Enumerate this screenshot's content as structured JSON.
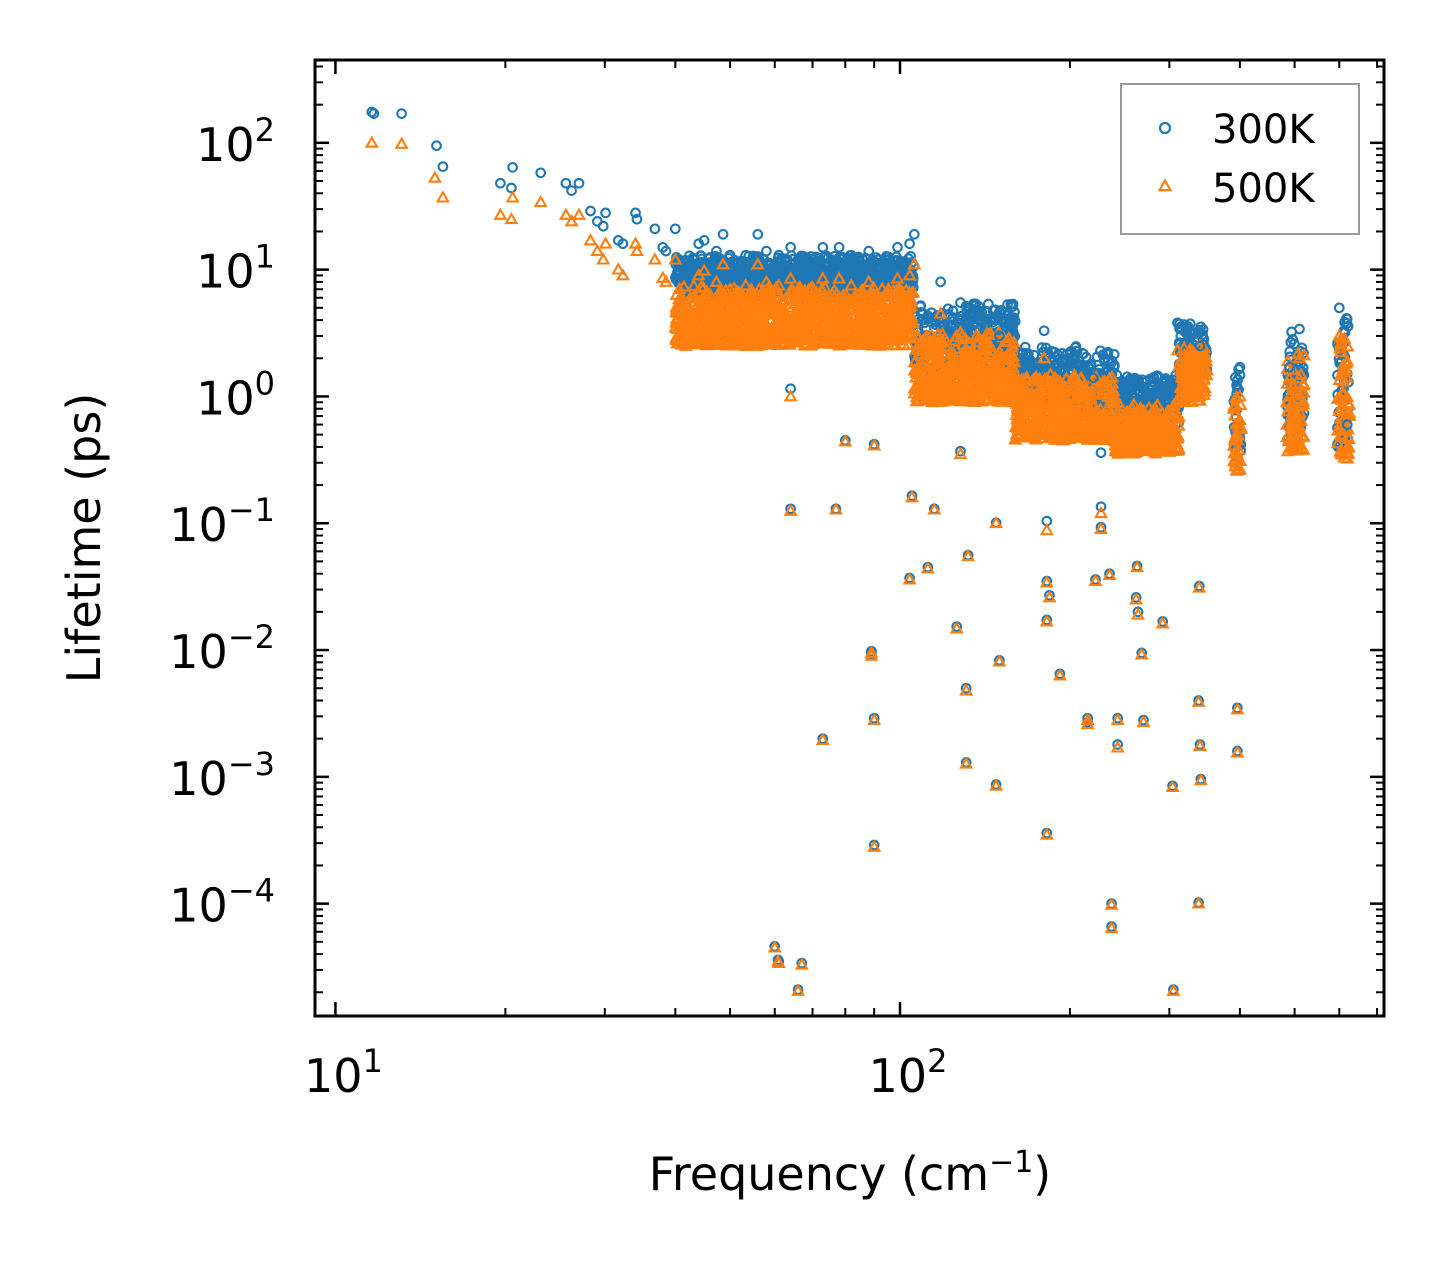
{
  "chart_data": {
    "type": "scatter",
    "xscale": "log",
    "yscale": "log",
    "xlabel": "Frequency (cm",
    "xlabel_sup": "−1",
    "xlabel_end": ")",
    "ylabel": "Lifetime (ps)",
    "xlim": [
      9.2,
      720
    ],
    "ylim": [
      1.3e-05,
      450
    ],
    "x_ticks": [
      {
        "value": 10,
        "base": "10",
        "exp": "1"
      },
      {
        "value": 100,
        "base": "10",
        "exp": "2"
      }
    ],
    "y_ticks": [
      {
        "value": 100,
        "base": "10",
        "exp": "2"
      },
      {
        "value": 10,
        "base": "10",
        "exp": "1"
      },
      {
        "value": 1,
        "base": "10",
        "exp": "0"
      },
      {
        "value": 0.1,
        "base": "10",
        "exp": "−1"
      },
      {
        "value": 0.01,
        "base": "10",
        "exp": "−2"
      },
      {
        "value": 0.001,
        "base": "10",
        "exp": "−3"
      },
      {
        "value": 0.0001,
        "base": "10",
        "exp": "−4"
      }
    ],
    "legend_position": "top-right",
    "series": [
      {
        "name": "300K",
        "marker": "circle",
        "color": "#1f77b4",
        "points": [
          [
            11.6,
            175
          ],
          [
            11.7,
            170
          ],
          [
            13.1,
            170
          ],
          [
            15.1,
            95
          ],
          [
            15.5,
            65
          ],
          [
            19.6,
            48
          ],
          [
            20.5,
            44
          ],
          [
            20.6,
            64
          ],
          [
            23.1,
            58
          ],
          [
            25.6,
            48
          ],
          [
            26.2,
            42
          ],
          [
            27.0,
            48
          ],
          [
            28.3,
            29
          ],
          [
            29.1,
            24
          ],
          [
            29.8,
            22
          ],
          [
            30.1,
            28
          ],
          [
            31.7,
            17
          ],
          [
            32.3,
            16
          ],
          [
            34.0,
            28
          ],
          [
            34.2,
            25
          ],
          [
            36.8,
            21
          ],
          [
            38.0,
            15
          ],
          [
            38.5,
            14
          ],
          [
            40.0,
            21
          ],
          [
            41.1,
            11
          ],
          [
            44.0,
            16
          ],
          [
            45.0,
            17
          ],
          [
            47.3,
            14
          ],
          [
            48.6,
            19
          ],
          [
            50.0,
            13
          ],
          [
            53.3,
            13
          ],
          [
            56.0,
            19
          ],
          [
            58.0,
            14
          ],
          [
            61.0,
            13
          ],
          [
            64.0,
            15
          ],
          [
            66.0,
            12
          ],
          [
            70.0,
            11
          ],
          [
            73.0,
            15
          ],
          [
            78.0,
            15
          ],
          [
            82.0,
            13
          ],
          [
            88.0,
            14
          ],
          [
            94.0,
            11
          ],
          [
            99.0,
            15
          ],
          [
            104.0,
            16
          ],
          [
            106.0,
            19
          ],
          [
            118.0,
            8
          ],
          [
            128.0,
            5.5
          ],
          [
            140.0,
            4
          ],
          [
            150.0,
            3
          ],
          [
            165.0,
            2.2
          ],
          [
            180.0,
            3.3
          ],
          [
            200.0,
            1.8
          ],
          [
            220.0,
            1.4
          ],
          [
            250.0,
            1.1
          ],
          [
            280.0,
            1.2
          ],
          [
            310.0,
            3.8
          ],
          [
            340.0,
            2.5
          ],
          [
            400.0,
            1.7
          ],
          [
            490.0,
            1.7
          ],
          [
            510.0,
            3.4
          ],
          [
            600.0,
            5.0
          ],
          [
            620.0,
            0.6
          ],
          [
            64,
            1.15
          ],
          [
            80,
            0.45
          ],
          [
            90,
            0.42
          ],
          [
            128,
            0.37
          ],
          [
            227,
            0.36
          ],
          [
            105,
            0.165
          ],
          [
            64,
            0.13
          ],
          [
            77,
            0.13
          ],
          [
            115,
            0.13
          ],
          [
            148,
            0.101
          ],
          [
            182,
            0.104
          ],
          [
            227,
            0.135
          ],
          [
            227,
            0.093
          ],
          [
            132,
            0.056
          ],
          [
            235,
            0.04
          ],
          [
            222,
            0.036
          ],
          [
            104,
            0.037
          ],
          [
            112,
            0.045
          ],
          [
            182,
            0.035
          ],
          [
            184,
            0.027
          ],
          [
            263,
            0.046
          ],
          [
            262,
            0.026
          ],
          [
            264,
            0.02
          ],
          [
            292,
            0.0168
          ],
          [
            339,
            0.032
          ],
          [
            126,
            0.0153
          ],
          [
            182,
            0.0173
          ],
          [
            89,
            0.0098
          ],
          [
            89,
            0.0093
          ],
          [
            150,
            0.0083
          ],
          [
            268,
            0.0095
          ],
          [
            192,
            0.0065
          ],
          [
            131,
            0.005
          ],
          [
            338,
            0.004
          ],
          [
            396,
            0.0035
          ],
          [
            90,
            0.0029
          ],
          [
            215,
            0.0029
          ],
          [
            215,
            0.0027
          ],
          [
            243,
            0.0029
          ],
          [
            243,
            0.0018
          ],
          [
            270,
            0.0028
          ],
          [
            73,
            0.002
          ],
          [
            340,
            0.0018
          ],
          [
            396,
            0.0016
          ],
          [
            131,
            0.0013
          ],
          [
            148,
            0.00087
          ],
          [
            304,
            0.00085
          ],
          [
            341,
            0.00096
          ],
          [
            182,
            0.00036
          ],
          [
            90,
            0.00029
          ],
          [
            237,
            0.0001
          ],
          [
            338,
            0.000102
          ],
          [
            237,
            6.6e-05
          ],
          [
            60,
            4.6e-05
          ],
          [
            60.8,
            3.6e-05
          ],
          [
            61,
            3.5e-05
          ],
          [
            67,
            3.4e-05
          ],
          [
            66,
            2.1e-05
          ],
          [
            305,
            2.1e-05
          ]
        ]
      },
      {
        "name": "500K",
        "marker": "triangle",
        "color": "#ff7f0e",
        "points": [
          [
            11.6,
            100
          ],
          [
            13.1,
            98
          ],
          [
            15.0,
            53
          ],
          [
            15.5,
            37
          ],
          [
            19.6,
            27
          ],
          [
            20.5,
            25
          ],
          [
            20.6,
            37
          ],
          [
            23.1,
            34
          ],
          [
            25.6,
            27
          ],
          [
            26.2,
            24
          ],
          [
            27.0,
            27
          ],
          [
            28.3,
            17
          ],
          [
            29.1,
            14
          ],
          [
            29.8,
            12
          ],
          [
            30.1,
            16
          ],
          [
            31.7,
            10
          ],
          [
            32.3,
            9
          ],
          [
            34.0,
            16
          ],
          [
            34.2,
            14
          ],
          [
            36.8,
            12
          ],
          [
            38.0,
            8.6
          ],
          [
            38.5,
            8
          ],
          [
            40.0,
            12
          ],
          [
            41.1,
            6
          ],
          [
            44.0,
            9
          ],
          [
            45.0,
            9.8
          ],
          [
            47.3,
            8
          ],
          [
            48.6,
            11
          ],
          [
            50.0,
            7
          ],
          [
            53.3,
            7.5
          ],
          [
            56.0,
            11
          ],
          [
            58.0,
            8
          ],
          [
            61.0,
            7.5
          ],
          [
            64.0,
            8.5
          ],
          [
            66.0,
            7
          ],
          [
            70.0,
            6.2
          ],
          [
            73.0,
            8.5
          ],
          [
            78.0,
            8.5
          ],
          [
            82.0,
            7.5
          ],
          [
            88.0,
            8
          ],
          [
            94.0,
            6.3
          ],
          [
            99.0,
            8.5
          ],
          [
            104.0,
            9
          ],
          [
            106.0,
            11
          ],
          [
            118.0,
            4.5
          ],
          [
            128.0,
            3.2
          ],
          [
            140.0,
            2.4
          ],
          [
            150.0,
            1.8
          ],
          [
            165.0,
            1.3
          ],
          [
            180.0,
            2.0
          ],
          [
            200.0,
            1.1
          ],
          [
            220.0,
            0.85
          ],
          [
            250.0,
            0.7
          ],
          [
            280.0,
            0.75
          ],
          [
            310.0,
            2.3
          ],
          [
            340.0,
            1.5
          ],
          [
            400.0,
            1.0
          ],
          [
            490.0,
            1.0
          ],
          [
            510.0,
            2.0
          ],
          [
            600.0,
            3.0
          ],
          [
            620.0,
            0.35
          ],
          [
            64,
            1.0
          ],
          [
            80,
            0.44
          ],
          [
            90,
            0.41
          ],
          [
            128,
            0.35
          ],
          [
            105,
            0.16
          ],
          [
            64,
            0.125
          ],
          [
            77,
            0.128
          ],
          [
            115,
            0.128
          ],
          [
            148,
            0.1
          ],
          [
            182,
            0.088
          ],
          [
            227,
            0.12
          ],
          [
            227,
            0.09
          ],
          [
            132,
            0.055
          ],
          [
            235,
            0.039
          ],
          [
            222,
            0.035
          ],
          [
            104,
            0.036
          ],
          [
            112,
            0.044
          ],
          [
            182,
            0.034
          ],
          [
            184,
            0.026
          ],
          [
            263,
            0.045
          ],
          [
            262,
            0.025
          ],
          [
            264,
            0.019
          ],
          [
            292,
            0.0162
          ],
          [
            339,
            0.031
          ],
          [
            126,
            0.0148
          ],
          [
            182,
            0.0168
          ],
          [
            89,
            0.0095
          ],
          [
            89,
            0.009
          ],
          [
            150,
            0.0081
          ],
          [
            268,
            0.0092
          ],
          [
            192,
            0.0063
          ],
          [
            131,
            0.0048
          ],
          [
            338,
            0.0039
          ],
          [
            396,
            0.0034
          ],
          [
            90,
            0.0028
          ],
          [
            215,
            0.0028
          ],
          [
            215,
            0.0026
          ],
          [
            243,
            0.0028
          ],
          [
            243,
            0.0017
          ],
          [
            270,
            0.0027
          ],
          [
            73,
            0.00195
          ],
          [
            340,
            0.00175
          ],
          [
            396,
            0.00155
          ],
          [
            131,
            0.00127
          ],
          [
            148,
            0.00085
          ],
          [
            304,
            0.00083
          ],
          [
            341,
            0.00094
          ],
          [
            182,
            0.00035
          ],
          [
            90,
            0.00028
          ],
          [
            237,
            9.8e-05
          ],
          [
            338,
            0.0001
          ],
          [
            237,
            6.4e-05
          ],
          [
            60,
            4.5e-05
          ],
          [
            60.8,
            3.5e-05
          ],
          [
            61,
            3.4e-05
          ],
          [
            67,
            3.3e-05
          ],
          [
            66,
            2.05e-05
          ],
          [
            305,
            2.05e-05
          ]
        ]
      }
    ],
    "dense_bands": [
      {
        "x_from": 40,
        "x_to": 106,
        "y300_top": 13,
        "y300_bot": 6.5,
        "y500_top": 7.5,
        "y500_bot": 2.5
      },
      {
        "x_from": 106,
        "x_to": 160,
        "y300_top": 5.5,
        "y300_bot": 1.5,
        "y500_top": 3.2,
        "y500_bot": 0.9
      },
      {
        "x_from": 160,
        "x_to": 240,
        "y300_top": 2.5,
        "y300_bot": 0.8,
        "y500_top": 1.5,
        "y500_bot": 0.45
      },
      {
        "x_from": 240,
        "x_to": 312,
        "y300_top": 1.5,
        "y300_bot": 0.6,
        "y500_top": 0.9,
        "y500_bot": 0.35
      },
      {
        "x_from": 312,
        "x_to": 350,
        "y300_top": 3.8,
        "y300_bot": 1.5,
        "y500_top": 2.5,
        "y500_bot": 0.9
      },
      {
        "x_from": 390,
        "x_to": 402,
        "y300_top": 1.7,
        "y300_bot": 0.3,
        "y500_top": 1.0,
        "y500_bot": 0.25
      },
      {
        "x_from": 485,
        "x_to": 520,
        "y300_top": 3.4,
        "y300_bot": 0.45,
        "y500_top": 2.2,
        "y500_bot": 0.35
      },
      {
        "x_from": 595,
        "x_to": 625,
        "y300_top": 5.0,
        "y300_bot": 0.38,
        "y500_top": 3.0,
        "y500_bot": 0.32
      }
    ]
  }
}
